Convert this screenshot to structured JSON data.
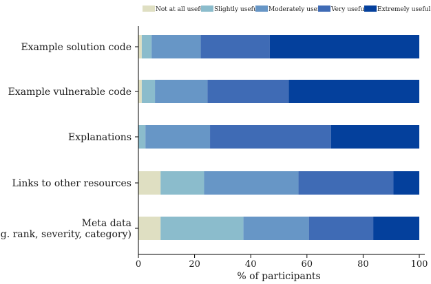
{
  "chart_data": {
    "type": "bar",
    "orientation": "horizontal",
    "stacked": true,
    "categories": [
      "Example solution code",
      "Example vulnerable code",
      "Explanations",
      "Links to other resources",
      "Meta data\n(e.g. rank, severity, category)"
    ],
    "series": [
      {
        "name": "Not at all useful",
        "color": "#dfdfc2",
        "values": [
          1.2,
          1.2,
          0,
          7.9,
          7.9
        ]
      },
      {
        "name": "Slightly useful",
        "color": "#8bbccc",
        "values": [
          3.5,
          4.7,
          2.5,
          15.5,
          29.5
        ]
      },
      {
        "name": "Moderately useful",
        "color": "#6796c6",
        "values": [
          17.5,
          18.7,
          23.0,
          33.6,
          23.3
        ]
      },
      {
        "name": "Very useful",
        "color": "#3f6bb5",
        "values": [
          24.6,
          28.9,
          43.1,
          33.8,
          22.9
        ]
      },
      {
        "name": "Extremely useful",
        "color": "#04409c",
        "values": [
          53.2,
          46.5,
          31.4,
          9.2,
          16.4
        ]
      }
    ],
    "xlabel": "% of participants",
    "ylabel": "",
    "xlim": [
      0,
      100
    ],
    "xticks": [
      0,
      20,
      40,
      60,
      80,
      100
    ],
    "grid": false,
    "legend": "top"
  }
}
